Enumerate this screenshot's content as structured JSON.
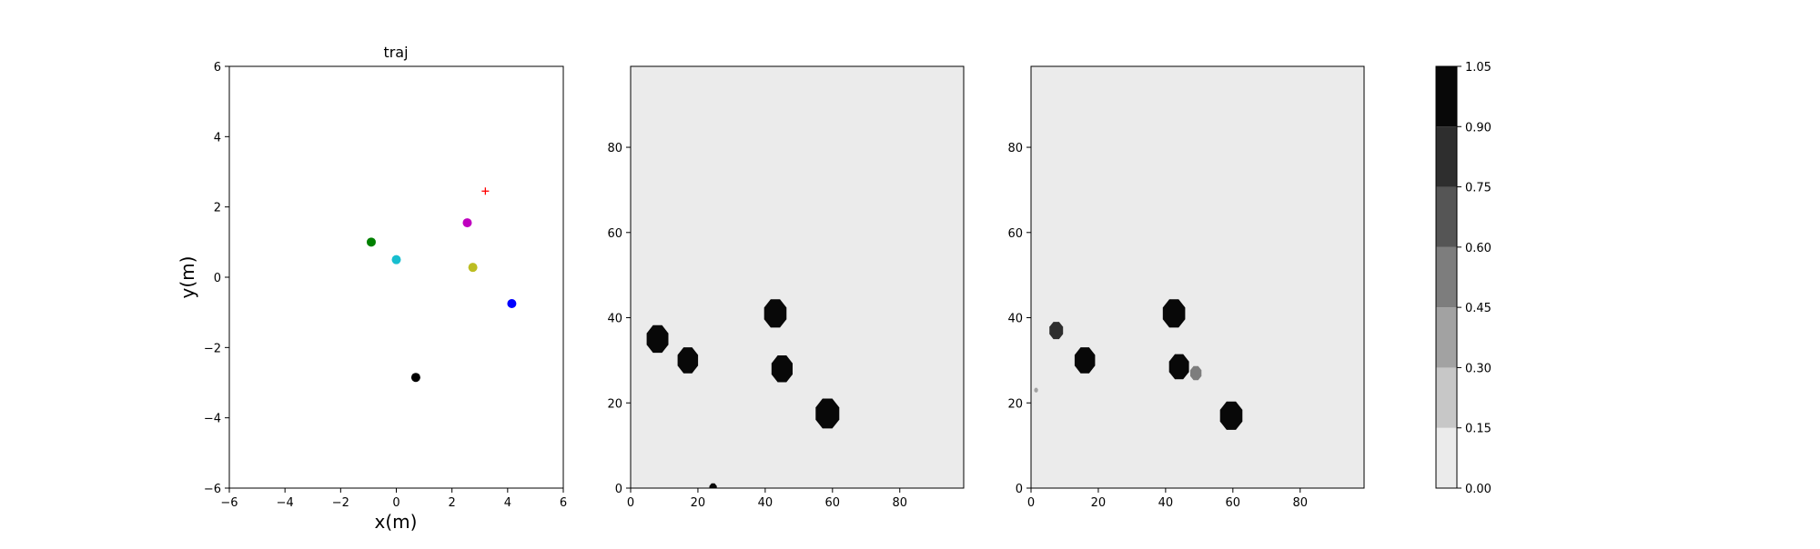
{
  "chart_data": [
    {
      "type": "scatter",
      "title": "traj",
      "xlabel": "x(m)",
      "ylabel": "y(m)",
      "xlim": [
        -6,
        6
      ],
      "ylim": [
        -6,
        6
      ],
      "xticks": [
        -6,
        -4,
        -2,
        0,
        2,
        4,
        6
      ],
      "yticks": [
        -6,
        -4,
        -2,
        0,
        2,
        4,
        6
      ],
      "xtick_labels": [
        "−6",
        "−4",
        "−2",
        "0",
        "2",
        "4",
        "6"
      ],
      "ytick_labels": [
        "−6",
        "−4",
        "−2",
        "0",
        "2",
        "4",
        "6"
      ],
      "grid": false,
      "points": [
        {
          "x": -0.9,
          "y": 1.0,
          "color": "#008000",
          "marker": "circle"
        },
        {
          "x": 0.0,
          "y": 0.5,
          "color": "#17becf",
          "marker": "circle"
        },
        {
          "x": 2.55,
          "y": 1.55,
          "color": "#bf00bf",
          "marker": "circle"
        },
        {
          "x": 2.75,
          "y": 0.28,
          "color": "#bcbd22",
          "marker": "circle"
        },
        {
          "x": 4.15,
          "y": -0.75,
          "color": "#0000ff",
          "marker": "circle"
        },
        {
          "x": 0.7,
          "y": -2.85,
          "color": "#000000",
          "marker": "circle"
        },
        {
          "x": 3.2,
          "y": 2.45,
          "color": "#ff0000",
          "marker": "plus"
        }
      ]
    },
    {
      "type": "heatmap",
      "xlim": [
        0,
        99
      ],
      "ylim": [
        0,
        99
      ],
      "xticks": [
        0,
        20,
        40,
        60,
        80
      ],
      "yticks": [
        0,
        20,
        40,
        60,
        80
      ],
      "xtick_labels": [
        "0",
        "20",
        "40",
        "60",
        "80"
      ],
      "ytick_labels": [
        "0",
        "20",
        "40",
        "60",
        "80"
      ],
      "background_level": 0.0,
      "blobs": [
        {
          "x": 8,
          "y": 35,
          "r": 3.5,
          "value": 1.0
        },
        {
          "x": 17,
          "y": 30,
          "r": 3.3,
          "value": 1.0
        },
        {
          "x": 43,
          "y": 41,
          "r": 3.6,
          "value": 1.0
        },
        {
          "x": 45,
          "y": 28,
          "r": 3.4,
          "value": 1.0
        },
        {
          "x": 58.5,
          "y": 17.5,
          "r": 3.8,
          "value": 1.0
        },
        {
          "x": 24.5,
          "y": 0,
          "r": 1.2,
          "value": 1.0
        }
      ]
    },
    {
      "type": "heatmap",
      "xlim": [
        0,
        99
      ],
      "ylim": [
        0,
        99
      ],
      "xticks": [
        0,
        20,
        40,
        60,
        80
      ],
      "yticks": [
        0,
        20,
        40,
        60,
        80
      ],
      "xtick_labels": [
        "0",
        "20",
        "40",
        "60",
        "80"
      ],
      "ytick_labels": [
        "0",
        "20",
        "40",
        "60",
        "80"
      ],
      "background_level": 0.0,
      "blobs": [
        {
          "x": 7.5,
          "y": 37,
          "r": 2.2,
          "value": 0.85
        },
        {
          "x": 16,
          "y": 30,
          "r": 3.3,
          "value": 1.0
        },
        {
          "x": 42.5,
          "y": 41,
          "r": 3.6,
          "value": 1.0
        },
        {
          "x": 44,
          "y": 28.5,
          "r": 3.2,
          "value": 1.0
        },
        {
          "x": 49,
          "y": 27,
          "r": 1.8,
          "value": 0.55
        },
        {
          "x": 59.5,
          "y": 17,
          "r": 3.6,
          "value": 1.0
        },
        {
          "x": 1.5,
          "y": 23,
          "r": 0.6,
          "value": 0.35
        }
      ]
    }
  ],
  "colorbar": {
    "levels": [
      0.0,
      0.15,
      0.3,
      0.45,
      0.6,
      0.75,
      0.9,
      1.05
    ],
    "tick_labels": [
      "0.00",
      "0.15",
      "0.30",
      "0.45",
      "0.60",
      "0.75",
      "0.90",
      "1.05"
    ],
    "colors": [
      "#ebebeb",
      "#c7c7c7",
      "#a2a2a2",
      "#7d7d7d",
      "#555555",
      "#2e2e2e",
      "#080808"
    ]
  }
}
